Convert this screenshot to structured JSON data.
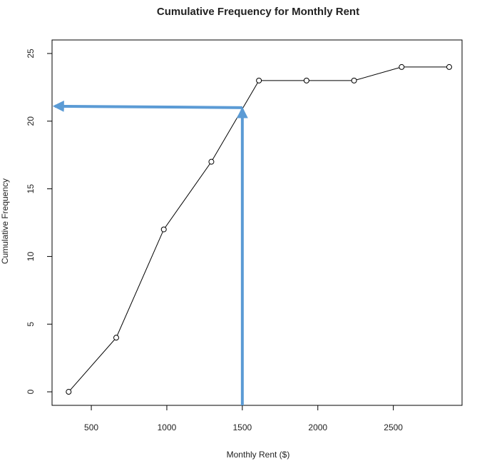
{
  "chart_data": {
    "type": "line",
    "title": "Cumulative Frequency for Monthly Rent",
    "x_label": "Monthly Rent ($)",
    "y_label": "Cumulative Frequency",
    "x": [
      350,
      665,
      980,
      1295,
      1610,
      1925,
      2240,
      2555,
      2870
    ],
    "series": [
      {
        "color": "#000000",
        "values": [
          0,
          4,
          12,
          17,
          23,
          23,
          23,
          24,
          24
        ]
      }
    ],
    "xlim": [
      240,
      2955
    ],
    "xticks": [
      500,
      1000,
      1500,
      2000,
      2500
    ],
    "ylim": [
      -1,
      26
    ],
    "yticks": [
      0,
      5,
      10,
      15,
      20,
      25
    ],
    "guide": {
      "x": 1500,
      "y": 21,
      "color": "#5b9bd5"
    }
  }
}
